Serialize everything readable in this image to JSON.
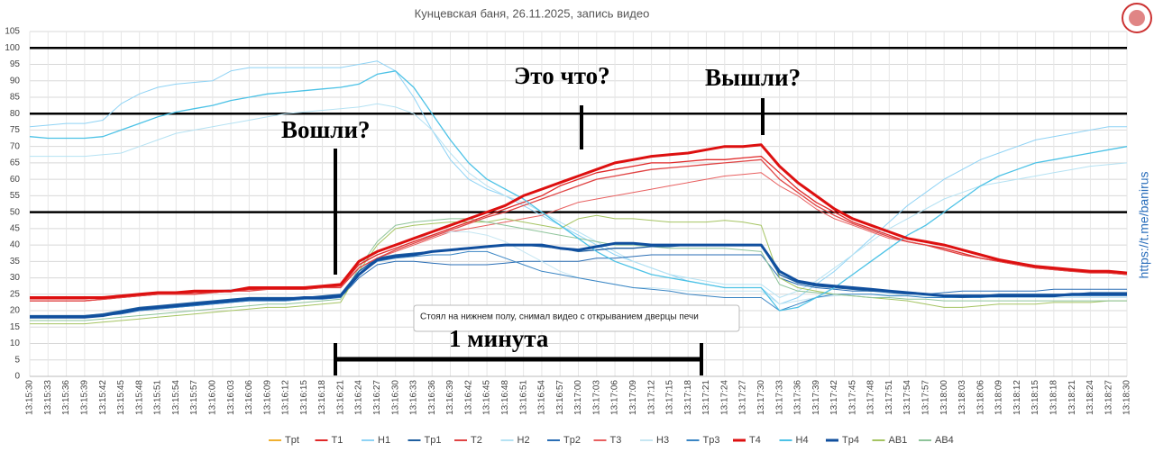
{
  "chart_data": {
    "type": "line",
    "title": "Кунцевская баня, 26.11.2025, запись видео",
    "side_text": "https://t.me/banirus",
    "annotations": [
      {
        "text": "Вошли?"
      },
      {
        "text": "Это что?"
      },
      {
        "text": "Вышли?"
      },
      {
        "text": "1 минута"
      },
      {
        "text": "Стоял на нижнем полу, снимал видео с открыванием дверцы печи"
      }
    ],
    "categories": [
      "13:15:30",
      "13:15:33",
      "13:15:36",
      "13:15:39",
      "13:15:42",
      "13:15:45",
      "13:15:48",
      "13:15:51",
      "13:15:54",
      "13:15:57",
      "13:16:00",
      "13:16:03",
      "13:16:06",
      "13:16:09",
      "13:16:12",
      "13:16:15",
      "13:16:18",
      "13:16:21",
      "13:16:24",
      "13:16:27",
      "13:16:30",
      "13:16:33",
      "13:16:36",
      "13:16:39",
      "13:16:42",
      "13:16:45",
      "13:16:48",
      "13:16:51",
      "13:16:54",
      "13:16:57",
      "13:17:00",
      "13:17:03",
      "13:17:06",
      "13:17:09",
      "13:17:12",
      "13:17:15",
      "13:17:18",
      "13:17:21",
      "13:17:24",
      "13:17:27",
      "13:17:30",
      "13:17:33",
      "13:17:36",
      "13:17:39",
      "13:17:42",
      "13:17:45",
      "13:17:48",
      "13:17:51",
      "13:17:54",
      "13:17:57",
      "13:18:00",
      "13:18:03",
      "13:18:06",
      "13:18:09",
      "13:18:12",
      "13:18:15",
      "13:18:18",
      "13:18:21",
      "13:18:24",
      "13:18:27",
      "13:18:30"
    ],
    "ylim": [
      0,
      105
    ],
    "yticks": [
      0,
      5,
      10,
      15,
      20,
      25,
      30,
      35,
      40,
      45,
      50,
      55,
      60,
      65,
      70,
      75,
      80,
      85,
      90,
      95,
      100,
      105
    ],
    "grid": true,
    "reference_lines": [
      100,
      80,
      50
    ],
    "series": [
      {
        "name": "Tpt",
        "color": "#f0b030",
        "line_width": 1,
        "values": [
          null,
          null,
          null,
          null,
          null,
          null,
          null,
          null,
          null,
          null,
          null,
          null,
          null,
          null,
          null,
          null,
          null,
          null,
          null,
          null,
          null,
          null,
          null,
          null,
          null,
          null,
          null,
          null,
          null,
          null,
          null,
          null,
          null,
          null,
          null,
          null,
          null,
          null,
          null,
          null,
          null,
          null,
          null,
          null,
          null,
          null,
          null,
          null,
          null,
          null,
          null,
          null,
          null,
          null,
          null,
          null,
          null,
          null,
          null,
          null,
          null
        ]
      },
      {
        "name": "T1",
        "color": "#e02828",
        "line_width": 1.3,
        "values": [
          23,
          23,
          23,
          23,
          23.5,
          24,
          24.5,
          25,
          25,
          25.5,
          25.5,
          26,
          26.5,
          26.5,
          26.5,
          26.5,
          27,
          27.5,
          34,
          37,
          39,
          41,
          43,
          45,
          47,
          49,
          51,
          53,
          55,
          58,
          60,
          62,
          63,
          64,
          65,
          65,
          65.5,
          66,
          66,
          66.5,
          67,
          62,
          57,
          53,
          50,
          47,
          45,
          43,
          41,
          40,
          39,
          37.5,
          36,
          35,
          34,
          33,
          32.5,
          32,
          32,
          31.5,
          31
        ]
      },
      {
        "name": "H1",
        "color": "#8fd3f5",
        "line_width": 1,
        "values": [
          76,
          76.5,
          77,
          77,
          78,
          83,
          86,
          88,
          89,
          89.5,
          90,
          93,
          94,
          94,
          94,
          94,
          94,
          94,
          95,
          96,
          93,
          85,
          75,
          66,
          60,
          57,
          55,
          52,
          49,
          46,
          43,
          40,
          37,
          35,
          33,
          31,
          29,
          28,
          27,
          27,
          27,
          22,
          24,
          28,
          32,
          37,
          42,
          47,
          52,
          56,
          60,
          63,
          66,
          68,
          70,
          72,
          73,
          74,
          75,
          76,
          76
        ]
      },
      {
        "name": "Tp1",
        "color": "#1f5fa0",
        "line_width": 1.3,
        "values": [
          18.5,
          18.5,
          18.5,
          18.5,
          19,
          20,
          21,
          21.5,
          22,
          22.5,
          23,
          23.5,
          24,
          24,
          24,
          24,
          24.5,
          25,
          32,
          36,
          37,
          37.5,
          38,
          38.5,
          39,
          39.5,
          40,
          40,
          39.5,
          39,
          38,
          38.5,
          39,
          39,
          39.5,
          39.5,
          40,
          40,
          40,
          40,
          40,
          31,
          28.5,
          27.5,
          27,
          26.5,
          26,
          26,
          25.5,
          25,
          24.5,
          24,
          24.5,
          25,
          25,
          25,
          25,
          25,
          25.5,
          25.5,
          25.5
        ]
      },
      {
        "name": "T2",
        "color": "#e04444",
        "line_width": 1.3,
        "values": [
          23,
          23,
          23,
          23,
          23.5,
          24,
          24.5,
          25,
          25,
          25,
          25.5,
          26,
          26,
          26.5,
          26.5,
          26.5,
          27,
          27,
          33,
          36,
          38.5,
          40.5,
          42.5,
          44.5,
          46.5,
          48.5,
          50,
          52,
          54,
          56,
          58,
          60,
          61,
          62,
          63,
          63.5,
          64,
          64.5,
          65,
          65.5,
          66,
          60,
          56,
          52,
          49,
          46.5,
          44.5,
          42.5,
          41,
          40,
          38.5,
          37,
          36,
          35,
          34,
          33,
          32.5,
          32,
          31.5,
          31.5,
          31
        ]
      },
      {
        "name": "H2",
        "color": "#b5e2f3",
        "line_width": 1,
        "values": [
          67,
          67,
          67,
          67,
          67.5,
          68,
          70,
          72,
          74,
          75,
          76,
          77,
          78,
          79,
          80,
          80.5,
          81,
          81.5,
          82,
          83,
          82,
          80,
          75,
          68,
          62,
          58,
          55,
          53,
          50,
          47,
          44,
          41,
          38,
          35,
          33,
          31,
          30,
          29,
          28,
          28,
          28,
          24,
          26,
          29,
          33,
          37,
          41,
          45,
          48,
          51,
          54,
          56,
          58,
          59,
          60,
          61,
          62,
          63,
          64,
          64.5,
          65
        ]
      },
      {
        "name": "Tp2",
        "color": "#2a6eb5",
        "line_width": 1,
        "values": [
          18,
          18,
          18,
          18,
          18.5,
          19,
          20,
          20.5,
          21,
          21.5,
          22,
          22.5,
          23,
          23,
          23,
          23.5,
          23.5,
          24,
          30,
          34,
          35,
          35,
          34.5,
          34,
          34,
          34,
          34.5,
          35,
          35,
          35,
          35,
          36,
          36,
          36.5,
          37,
          37,
          37,
          37,
          37,
          37,
          37,
          30,
          28,
          27,
          26.5,
          26,
          26,
          25.5,
          25,
          25,
          25.5,
          26,
          26,
          26,
          26,
          26,
          26.5,
          26.5,
          26.5,
          26.5,
          26.5
        ]
      },
      {
        "name": "T3",
        "color": "#e86060",
        "line_width": 1,
        "values": [
          23.5,
          23.5,
          23.5,
          23.5,
          24,
          24,
          24.5,
          25,
          25,
          25.5,
          25.5,
          26,
          26.5,
          26.5,
          26.5,
          27,
          27,
          27.5,
          33,
          36,
          38,
          40,
          42,
          44,
          45,
          46,
          47,
          48,
          49,
          51,
          53,
          54,
          55,
          56,
          57,
          58,
          59,
          60,
          61,
          61.5,
          62,
          58,
          55,
          51,
          48,
          46,
          44,
          42,
          41,
          40,
          38.5,
          37,
          36,
          35,
          34,
          33.5,
          33,
          32.5,
          32,
          31.5,
          31
        ]
      },
      {
        "name": "H3",
        "color": "#c6e6f2",
        "line_width": 1,
        "values": [
          24,
          24,
          24,
          24,
          24,
          24.5,
          25,
          25,
          25.5,
          26,
          26,
          26.5,
          27,
          27,
          27,
          27,
          27.5,
          28,
          34,
          38,
          40,
          42,
          43,
          44,
          44,
          43,
          41,
          38,
          35,
          32,
          30,
          29,
          28,
          27,
          27,
          26.5,
          26,
          26,
          26,
          26,
          26,
          22,
          23,
          24,
          24.5,
          25,
          25,
          25,
          24.5,
          24.5,
          24,
          24,
          24,
          24,
          24,
          24,
          24,
          24,
          24,
          24,
          24
        ]
      },
      {
        "name": "Tp3",
        "color": "#3a85c4",
        "line_width": 1,
        "values": [
          18.5,
          18.5,
          18.5,
          18.5,
          19,
          19.5,
          20,
          20.5,
          21,
          21.5,
          22,
          22.5,
          23,
          23,
          23,
          23.5,
          24,
          24.5,
          31,
          35,
          36,
          36.5,
          37,
          37,
          38,
          38,
          36,
          34,
          32,
          31,
          30,
          29,
          28,
          27,
          26.5,
          26,
          25,
          24.5,
          24,
          24,
          24,
          20,
          22,
          24,
          25,
          25,
          25,
          24.5,
          24.5,
          24,
          24,
          24,
          24,
          24.5,
          24.5,
          24.5,
          24.5,
          24.5,
          24.5,
          24.5,
          24.5
        ]
      },
      {
        "name": "T4",
        "color": "#dd1010",
        "line_width": 3,
        "values": [
          24,
          24,
          24,
          24,
          24,
          24.5,
          25,
          25.5,
          25.5,
          26,
          26,
          26,
          27,
          27,
          27,
          27,
          27.5,
          28,
          35,
          38,
          40,
          42,
          44,
          46,
          48,
          50,
          52,
          55,
          57,
          59,
          61,
          63,
          65,
          66,
          67,
          67.5,
          68,
          69,
          70,
          70,
          70.5,
          64,
          59,
          55,
          51,
          48,
          46,
          44,
          42,
          41,
          40,
          38.5,
          37,
          35.5,
          34.5,
          33.5,
          33,
          32.5,
          32,
          32,
          31.5
        ]
      },
      {
        "name": "H4",
        "color": "#4cc2e6",
        "line_width": 1.3,
        "values": [
          73,
          72.5,
          72.5,
          72.5,
          73,
          75,
          77,
          79,
          80.5,
          81.5,
          82.5,
          84,
          85,
          86,
          86.5,
          87,
          87.5,
          88,
          89,
          92,
          93,
          88,
          80,
          72,
          65,
          60,
          57,
          54,
          50,
          46,
          42,
          38,
          35,
          33,
          31,
          30,
          29,
          28,
          27,
          27,
          27,
          20,
          21,
          24,
          27,
          31,
          35,
          39,
          43,
          46,
          50,
          54,
          58,
          61,
          63,
          65,
          66,
          67,
          68,
          69,
          70
        ]
      },
      {
        "name": "Tp4",
        "color": "#104f9e",
        "line_width": 3,
        "values": [
          18,
          18,
          18,
          18,
          18.5,
          19.5,
          20.5,
          21,
          21.5,
          22,
          22.5,
          23,
          23.5,
          23.5,
          23.5,
          24,
          24,
          24.5,
          31,
          35.5,
          36.5,
          37,
          38,
          38.5,
          39,
          39.5,
          40,
          40,
          40,
          39,
          38.5,
          39.5,
          40.5,
          40.5,
          40,
          40,
          40,
          40,
          40,
          40,
          40,
          32,
          29,
          28,
          27.5,
          27,
          26.5,
          26,
          25.5,
          25,
          24.5,
          24.5,
          24.5,
          24.5,
          24.5,
          24.5,
          24.5,
          25,
          25,
          25,
          25
        ]
      },
      {
        "name": "AB1",
        "color": "#a5c462",
        "line_width": 1,
        "values": [
          16,
          16,
          16,
          16,
          16.5,
          17,
          17.5,
          18,
          18.5,
          19,
          19.5,
          20,
          20.5,
          21,
          21,
          21.5,
          22,
          22.5,
          32,
          40,
          45,
          46,
          46.5,
          47,
          47,
          47,
          48,
          47,
          46,
          45,
          48,
          49,
          48,
          48,
          47.5,
          47,
          47,
          47,
          47.5,
          47,
          46,
          30,
          27,
          26,
          25,
          24.5,
          24,
          23.5,
          23,
          22,
          21,
          21,
          21.5,
          22,
          22,
          22,
          22.5,
          22.5,
          22.5,
          23,
          23
        ]
      },
      {
        "name": "AB4",
        "color": "#8ec49a",
        "line_width": 1,
        "values": [
          17,
          17,
          17,
          17,
          17.5,
          18,
          18.5,
          19,
          19.5,
          20,
          20.5,
          21,
          21.5,
          22,
          22,
          22.5,
          23,
          23.5,
          33,
          41,
          46,
          47,
          47.5,
          48,
          48,
          47,
          46,
          45,
          44,
          43,
          42,
          41,
          40,
          40,
          39.5,
          39,
          39,
          39,
          39,
          38.5,
          38,
          28,
          26,
          25.5,
          25,
          24.5,
          24,
          24,
          23.5,
          23.5,
          23,
          23,
          23,
          23,
          23,
          23,
          23,
          23,
          23,
          23,
          23
        ]
      }
    ]
  }
}
